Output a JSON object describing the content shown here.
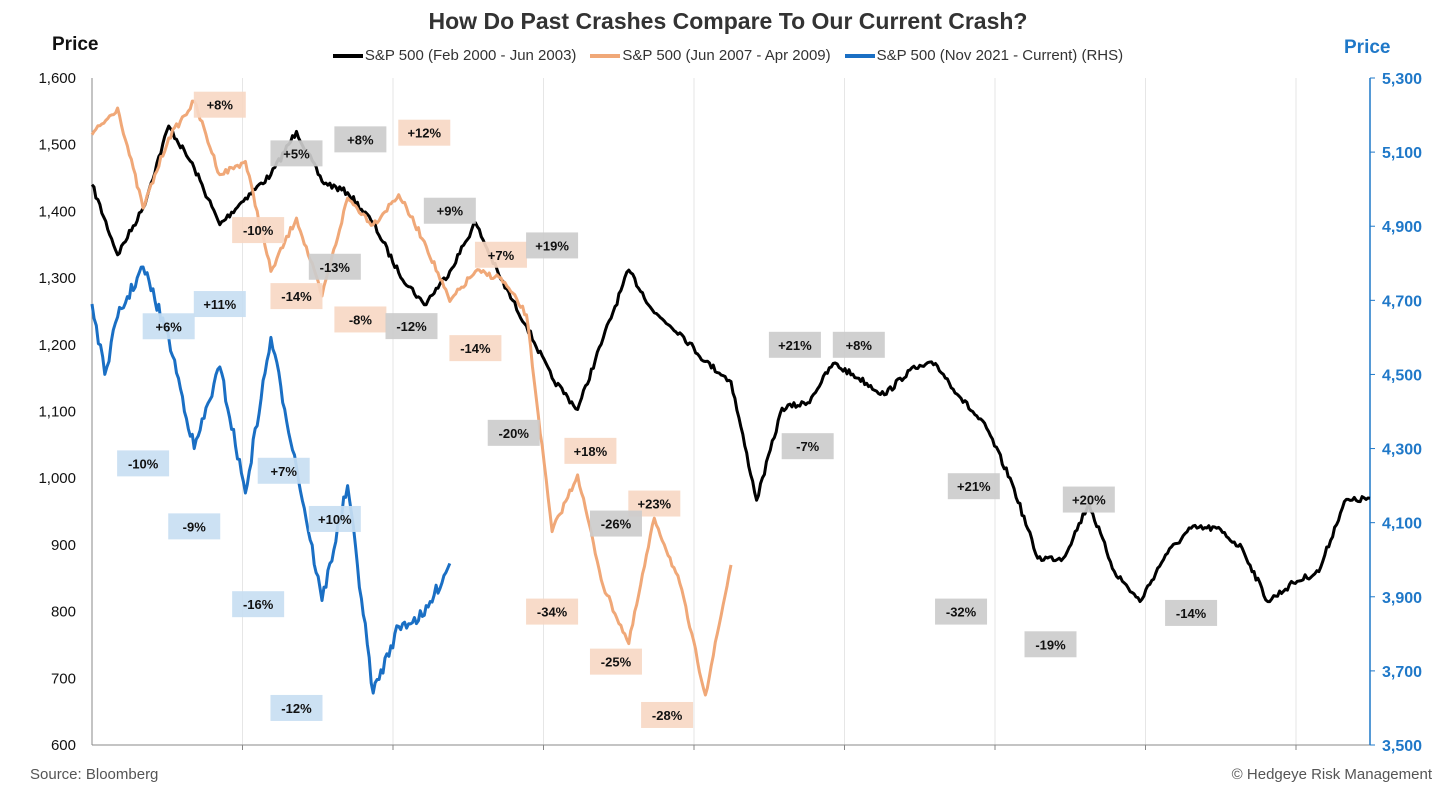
{
  "chart_data": {
    "type": "line",
    "title": "How Do Past Crashes Compare To Our Current Crash?",
    "ylabel": "Price",
    "ylabel_right": "Price",
    "ylim": [
      600,
      1600
    ],
    "ylim_right": [
      3500,
      5300
    ],
    "yticks_left": [
      "1,600",
      "1,500",
      "1,400",
      "1,300",
      "1,200",
      "1,100",
      "1,000",
      "900",
      "800",
      "700",
      "600"
    ],
    "yticks_right": [
      "5,300",
      "5,100",
      "4,900",
      "4,700",
      "4,500",
      "4,300",
      "4,100",
      "3,900",
      "3,700",
      "3,500"
    ],
    "grid": "vertical",
    "legend_position": "top",
    "series": [
      {
        "name": "S&P 500 (Feb 2000 - Jun 2003)",
        "color": "#000000",
        "axis": "left",
        "x": [
          0,
          0.02,
          0.04,
          0.06,
          0.08,
          0.1,
          0.12,
          0.14,
          0.16,
          0.18,
          0.2,
          0.22,
          0.24,
          0.26,
          0.28,
          0.3,
          0.32,
          0.34,
          0.36,
          0.38,
          0.4,
          0.42,
          0.44,
          0.46,
          0.48,
          0.5,
          0.52,
          0.54,
          0.56,
          0.58,
          0.6,
          0.62,
          0.64,
          0.66,
          0.68,
          0.7,
          0.72,
          0.74,
          0.76,
          0.78,
          0.8,
          0.82,
          0.84,
          0.86,
          0.88,
          0.9,
          0.92,
          0.94,
          0.96,
          0.98,
          1.0
        ],
        "values": [
          1440,
          1335,
          1405,
          1528,
          1465,
          1380,
          1420,
          1455,
          1520,
          1445,
          1428,
          1383,
          1308,
          1260,
          1310,
          1383,
          1298,
          1228,
          1150,
          1103,
          1210,
          1312,
          1248,
          1218,
          1175,
          1145,
          967,
          1105,
          1113,
          1172,
          1150,
          1125,
          1162,
          1172,
          1120,
          1075,
          992,
          880,
          880,
          962,
          860,
          815,
          885,
          925,
          925,
          895,
          815,
          843,
          860,
          965,
          970
        ]
      },
      {
        "name": "S&P 500 (Jun 2007 - Apr 2009)",
        "color": "#f0a878",
        "axis": "left",
        "x": [
          0,
          0.02,
          0.04,
          0.06,
          0.08,
          0.1,
          0.12,
          0.14,
          0.16,
          0.18,
          0.2,
          0.22,
          0.24,
          0.26,
          0.28,
          0.3,
          0.32,
          0.34,
          0.36,
          0.38,
          0.4,
          0.42,
          0.44,
          0.46,
          0.48,
          0.5
        ],
        "values": [
          1515,
          1555,
          1405,
          1510,
          1565,
          1455,
          1475,
          1310,
          1390,
          1273,
          1420,
          1380,
          1425,
          1355,
          1265,
          1310,
          1300,
          1245,
          920,
          1005,
          838,
          752,
          940,
          842,
          675,
          870
        ]
      },
      {
        "name": "S&P 500 (Nov 2021 - Current) (RHS)",
        "color": "#1a6fc4",
        "axis": "right",
        "x": [
          0,
          0.01,
          0.02,
          0.04,
          0.06,
          0.08,
          0.1,
          0.12,
          0.14,
          0.16,
          0.18,
          0.2,
          0.22,
          0.24,
          0.26,
          0.28
        ],
        "values": [
          4690,
          4500,
          4655,
          4790,
          4600,
          4300,
          4520,
          4180,
          4600,
          4250,
          3890,
          4200,
          3640,
          3820,
          3850,
          3990
        ]
      }
    ],
    "annotations": [
      {
        "text": "+8%",
        "series": 1,
        "x": 0.1,
        "y": 1560
      },
      {
        "text": "-10%",
        "series": 1,
        "x": 0.13,
        "y": 1372
      },
      {
        "text": "+5%",
        "series": 0,
        "x": 0.16,
        "y": 1487
      },
      {
        "text": "-14%",
        "series": 1,
        "x": 0.16,
        "y": 1273
      },
      {
        "text": "+8%",
        "series": 0,
        "x": 0.21,
        "y": 1508
      },
      {
        "text": "-13%",
        "series": 0,
        "x": 0.19,
        "y": 1317
      },
      {
        "text": "-8%",
        "series": 1,
        "x": 0.21,
        "y": 1238
      },
      {
        "text": "+12%",
        "series": 1,
        "x": 0.26,
        "y": 1518
      },
      {
        "text": "+9%",
        "series": 0,
        "x": 0.28,
        "y": 1401
      },
      {
        "text": "-12%",
        "series": 0,
        "x": 0.25,
        "y": 1228
      },
      {
        "text": "+7%",
        "series": 1,
        "x": 0.32,
        "y": 1335
      },
      {
        "text": "-14%",
        "series": 1,
        "x": 0.3,
        "y": 1195
      },
      {
        "text": "+19%",
        "series": 0,
        "x": 0.36,
        "y": 1349
      },
      {
        "text": "-20%",
        "series": 0,
        "x": 0.33,
        "y": 1068
      },
      {
        "text": "+6%",
        "series": 2,
        "x": 0.06,
        "y": 4630
      },
      {
        "text": "+11%",
        "series": 2,
        "x": 0.1,
        "y": 4690
      },
      {
        "text": "-10%",
        "series": 2,
        "x": 0.04,
        "y": 4260
      },
      {
        "text": "-9%",
        "series": 2,
        "x": 0.08,
        "y": 4090
      },
      {
        "text": "+7%",
        "series": 2,
        "x": 0.15,
        "y": 4240
      },
      {
        "text": "-16%",
        "series": 2,
        "x": 0.13,
        "y": 3880
      },
      {
        "text": "+10%",
        "series": 2,
        "x": 0.19,
        "y": 4110
      },
      {
        "text": "-12%",
        "series": 2,
        "x": 0.16,
        "y": 3600
      },
      {
        "text": "+18%",
        "series": 1,
        "x": 0.39,
        "y": 1041
      },
      {
        "text": "+23%",
        "series": 1,
        "x": 0.44,
        "y": 962
      },
      {
        "text": "-34%",
        "series": 1,
        "x": 0.36,
        "y": 800
      },
      {
        "text": "-25%",
        "series": 1,
        "x": 0.41,
        "y": 725
      },
      {
        "text": "-28%",
        "series": 1,
        "x": 0.45,
        "y": 645
      },
      {
        "text": "-26%",
        "series": 0,
        "x": 0.41,
        "y": 932
      },
      {
        "text": "+21%",
        "series": 0,
        "x": 0.55,
        "y": 1200
      },
      {
        "text": "-7%",
        "series": 0,
        "x": 0.56,
        "y": 1048
      },
      {
        "text": "+8%",
        "series": 0,
        "x": 0.6,
        "y": 1200
      },
      {
        "text": "+21%",
        "series": 0,
        "x": 0.69,
        "y": 988
      },
      {
        "text": "-32%",
        "series": 0,
        "x": 0.68,
        "y": 800
      },
      {
        "text": "+20%",
        "series": 0,
        "x": 0.78,
        "y": 968
      },
      {
        "text": "-19%",
        "series": 0,
        "x": 0.75,
        "y": 751
      },
      {
        "text": "-14%",
        "series": 0,
        "x": 0.86,
        "y": 798
      }
    ]
  },
  "annotation_fills": {
    "0": "#cccccc",
    "1": "#f7d8c4",
    "2": "#c8def2"
  },
  "axis_colors": {
    "left": "#111111",
    "right": "#1f78c8"
  },
  "source": "Source: Bloomberg",
  "credit": "© Hedgeye Risk Management"
}
